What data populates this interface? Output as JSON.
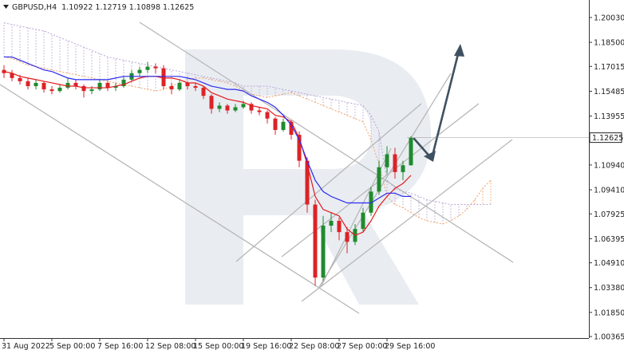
{
  "chart_data": {
    "type": "candlestick",
    "symbol": "GBPUSD,H4",
    "ohlc_header": [
      1.10922,
      1.12719,
      1.10898,
      1.12625
    ],
    "last_price": 1.12625,
    "ylim": [
      1.0027,
      1.2111
    ],
    "yticks": [
      {
        "value": 1.2003,
        "label": "1.20030"
      },
      {
        "value": 1.185,
        "label": "1.18500"
      },
      1.17015,
      1.15485,
      1.13955,
      {
        "value": 1.1094,
        "label": "1.10940"
      },
      {
        "value": 1.0941,
        "label": "1.09410"
      },
      1.07925,
      1.06395,
      {
        "value": 1.0491,
        "label": "1.04910"
      },
      {
        "value": 1.0338,
        "label": "1.03380"
      },
      {
        "value": 1.0185,
        "label": "1.01850"
      },
      1.00365
    ],
    "categories": [
      "31 Aug 2022",
      null,
      null,
      null,
      null,
      null,
      "5 Sep 00:00",
      null,
      null,
      null,
      null,
      null,
      "7 Sep 16:00",
      null,
      null,
      null,
      null,
      null,
      "12 Sep 08:00",
      null,
      null,
      null,
      null,
      null,
      "15 Sep 00:00",
      null,
      null,
      null,
      null,
      null,
      "19 Sep 16:00",
      null,
      null,
      null,
      null,
      null,
      "22 Sep 08:00",
      null,
      null,
      null,
      null,
      null,
      "27 Sep 00:00",
      null,
      null,
      null,
      null,
      null,
      "29 Sep 16:00",
      null,
      null,
      null,
      null,
      null,
      null,
      null,
      null,
      null,
      null,
      null,
      null,
      null
    ],
    "up_color": "#1f8a2e",
    "down_color": "#dc2326",
    "open": [
      1.168,
      1.166,
      1.163,
      1.161,
      1.158,
      1.16,
      1.156,
      1.155,
      1.157,
      1.16,
      1.158,
      1.155,
      1.156,
      1.16,
      1.157,
      1.158,
      1.162,
      1.166,
      1.168,
      1.17,
      1.169,
      1.158,
      1.156,
      1.16,
      1.158,
      1.157,
      1.152,
      1.144,
      1.146,
      1.143,
      1.145,
      1.147,
      1.143,
      1.142,
      1.138,
      1.131,
      1.136,
      1.128,
      1.112,
      1.085,
      1.04,
      1.072,
      1.075,
      1.068,
      1.062,
      1.07,
      1.08,
      1.093,
      1.108,
      1.116,
      1.105,
      1.10922,
      null,
      null,
      null,
      null,
      null,
      null,
      null,
      null,
      null,
      null
    ],
    "high": [
      1.171,
      1.168,
      1.165,
      1.163,
      1.162,
      1.161,
      1.158,
      1.159,
      1.163,
      1.162,
      1.159,
      1.158,
      1.162,
      1.161,
      1.16,
      1.164,
      1.168,
      1.17,
      1.173,
      1.172,
      1.171,
      1.16,
      1.162,
      1.161,
      1.16,
      1.158,
      1.153,
      1.148,
      1.147,
      1.147,
      1.149,
      1.148,
      1.145,
      1.143,
      1.139,
      1.138,
      1.137,
      1.13,
      1.114,
      1.088,
      1.078,
      1.08,
      1.077,
      1.071,
      1.073,
      1.083,
      1.096,
      1.112,
      1.121,
      1.12,
      1.112,
      1.12719,
      null,
      null,
      null,
      null,
      null,
      null,
      null,
      null,
      null,
      null
    ],
    "low": [
      1.163,
      1.161,
      1.159,
      1.156,
      1.156,
      1.154,
      1.153,
      1.154,
      1.156,
      1.156,
      1.151,
      1.153,
      1.155,
      1.155,
      1.155,
      1.157,
      1.161,
      1.164,
      1.166,
      1.166,
      1.156,
      1.153,
      1.155,
      1.156,
      1.155,
      1.15,
      1.141,
      1.142,
      1.141,
      1.142,
      1.144,
      1.141,
      1.14,
      1.135,
      1.128,
      1.13,
      1.125,
      1.108,
      1.08,
      1.035,
      1.038,
      1.068,
      1.063,
      1.055,
      1.06,
      1.068,
      1.078,
      1.091,
      1.104,
      1.101,
      1.1,
      1.10898,
      null,
      null,
      null,
      null,
      null,
      null,
      null,
      null,
      null,
      null
    ],
    "close": [
      1.166,
      1.163,
      1.161,
      1.158,
      1.16,
      1.156,
      1.155,
      1.157,
      1.16,
      1.158,
      1.155,
      1.156,
      1.16,
      1.157,
      1.158,
      1.162,
      1.166,
      1.168,
      1.17,
      1.169,
      1.158,
      1.156,
      1.16,
      1.158,
      1.157,
      1.152,
      1.144,
      1.146,
      1.143,
      1.145,
      1.147,
      1.143,
      1.142,
      1.138,
      1.131,
      1.136,
      1.128,
      1.112,
      1.085,
      1.04,
      1.072,
      1.075,
      1.068,
      1.062,
      1.07,
      1.08,
      1.093,
      1.108,
      1.116,
      1.105,
      1.10922,
      1.12625,
      null,
      null,
      null,
      null,
      null,
      null,
      null,
      null,
      null,
      null
    ],
    "lines": [
      {
        "color": "#e31a1c",
        "values": [
          1.167,
          1.166,
          1.164,
          1.163,
          1.162,
          1.161,
          1.16,
          1.159,
          1.158,
          1.158,
          1.157,
          1.157,
          1.157,
          1.157,
          1.158,
          1.159,
          1.161,
          1.163,
          1.164,
          1.164,
          1.163,
          1.163,
          1.162,
          1.16,
          1.16,
          1.158,
          1.154,
          1.152,
          1.15,
          1.149,
          1.148,
          1.146,
          1.145,
          1.144,
          1.14,
          1.139,
          1.136,
          1.126,
          1.11,
          1.09,
          1.082,
          1.08,
          1.078,
          1.07,
          1.066,
          1.068,
          1.075,
          1.084,
          1.09,
          1.095,
          1.098,
          1.103,
          null,
          null,
          null,
          null,
          null,
          null,
          null,
          null,
          null,
          null
        ]
      },
      {
        "color": "#2b2bef",
        "values": [
          1.176,
          1.176,
          1.174,
          1.172,
          1.17,
          1.168,
          1.167,
          1.165,
          1.163,
          1.162,
          1.162,
          1.162,
          1.162,
          1.162,
          1.163,
          1.164,
          1.164,
          1.164,
          1.164,
          1.164,
          1.164,
          1.164,
          1.164,
          1.163,
          1.162,
          1.16,
          1.158,
          1.157,
          1.156,
          1.156,
          1.155,
          1.152,
          1.15,
          1.148,
          1.145,
          1.14,
          1.134,
          1.125,
          1.112,
          1.1,
          1.093,
          1.09,
          1.088,
          1.086,
          1.086,
          1.086,
          1.086,
          1.089,
          1.092,
          1.092,
          1.09,
          1.09,
          null,
          null,
          null,
          null,
          null,
          null,
          null,
          null,
          null,
          null
        ]
      }
    ],
    "cloud": {
      "span_a": {
        "color": "#f4a261",
        "values": [
          1.176,
          1.175,
          1.173,
          1.171,
          1.17,
          1.169,
          1.168,
          1.167,
          1.166,
          1.165,
          1.164,
          1.163,
          1.162,
          1.161,
          1.16,
          1.159,
          1.158,
          1.157,
          1.156,
          1.155,
          1.156,
          1.158,
          1.16,
          1.162,
          1.163,
          1.163,
          1.162,
          1.161,
          1.16,
          1.158,
          1.155,
          1.153,
          1.152,
          1.151,
          1.152,
          1.153,
          1.154,
          1.152,
          1.15,
          1.148,
          1.146,
          1.144,
          1.142,
          1.14,
          1.138,
          1.136,
          1.125,
          1.11,
          1.09,
          1.085,
          1.083,
          1.08,
          1.077,
          1.075,
          1.074,
          1.073,
          1.075,
          1.078,
          1.082,
          1.088,
          1.095,
          1.1
        ]
      },
      "span_b": {
        "color": "#b9a3d6",
        "values": [
          1.197,
          1.196,
          1.195,
          1.194,
          1.193,
          1.192,
          1.19,
          1.188,
          1.186,
          1.184,
          1.182,
          1.18,
          1.178,
          1.176,
          1.175,
          1.174,
          1.173,
          1.172,
          1.171,
          1.17,
          1.169,
          1.168,
          1.167,
          1.166,
          1.165,
          1.164,
          1.163,
          1.162,
          1.161,
          1.16,
          1.158,
          1.158,
          1.158,
          1.158,
          1.157,
          1.156,
          1.155,
          1.154,
          1.153,
          1.152,
          1.151,
          1.15,
          1.149,
          1.148,
          1.147,
          1.146,
          1.14,
          1.13,
          1.1,
          1.095,
          1.093,
          1.092,
          1.09,
          1.088,
          1.087,
          1.086,
          1.085,
          1.085,
          1.085,
          1.085,
          1.085,
          1.085
        ]
      }
    }
  }
}
